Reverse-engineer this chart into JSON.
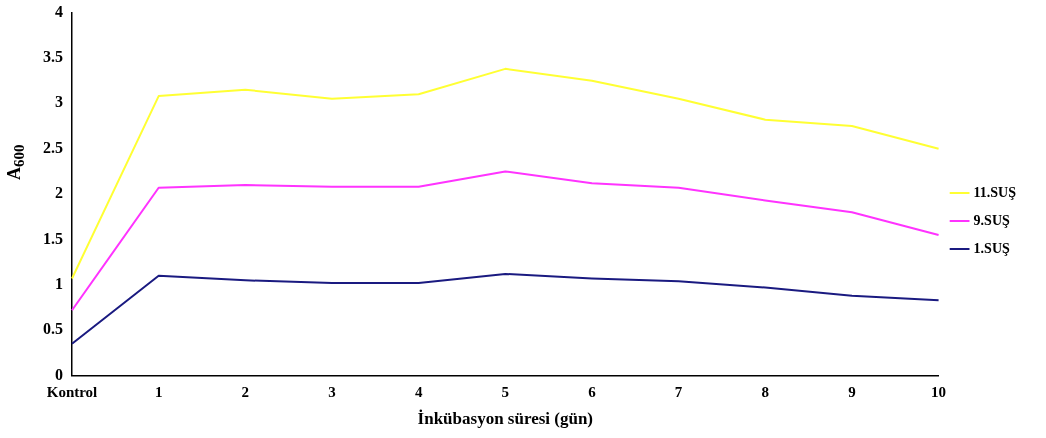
{
  "chart_data": {
    "type": "line",
    "xlabel": "İnkübasyon süresi (gün)",
    "ylabel": "A$_{600}$",
    "categories": [
      "Kontrol",
      "1",
      "2",
      "3",
      "4",
      "5",
      "6",
      "7",
      "8",
      "9",
      "10"
    ],
    "ylim": [
      0,
      4
    ],
    "yticks": [
      0,
      0.5,
      1,
      1.5,
      2,
      2.5,
      3,
      3.5,
      4
    ],
    "grid": false,
    "legend": "right",
    "marker": "none",
    "line_style": "solid",
    "series": [
      {
        "name": "11.SUŞ",
        "color": "#ffff33",
        "values": [
          1.07,
          3.08,
          3.15,
          3.05,
          3.1,
          3.38,
          3.25,
          3.05,
          2.82,
          2.75,
          2.5
        ]
      },
      {
        "name": "9.SUŞ",
        "color": "#ff33ff",
        "values": [
          0.72,
          2.07,
          2.1,
          2.08,
          2.08,
          2.25,
          2.12,
          2.07,
          1.93,
          1.8,
          1.55
        ]
      },
      {
        "name": "1.SUŞ",
        "color": "#1a1a80",
        "values": [
          0.35,
          1.1,
          1.05,
          1.02,
          1.02,
          1.12,
          1.07,
          1.04,
          0.97,
          0.88,
          0.83
        ]
      }
    ]
  }
}
